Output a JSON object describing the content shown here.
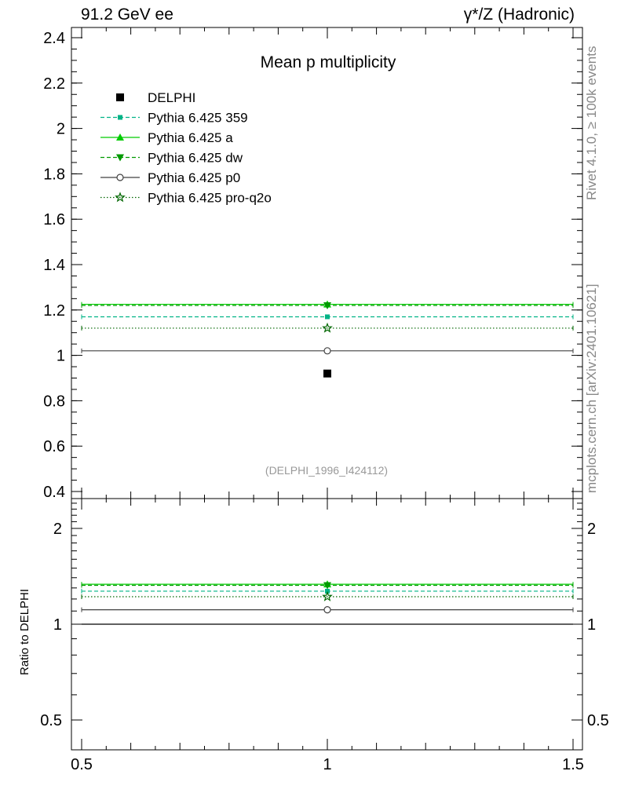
{
  "header": {
    "left": "91.2 GeV ee",
    "right": "γ*/Z (Hadronic)"
  },
  "side_text": {
    "rivet": "Rivet 4.1.0, ≥ 100k events",
    "mcplots": "mcplots.cern.ch [arXiv:2401.10621]"
  },
  "ratio_ylabel": "Ratio to DELPHI",
  "chart_data": [
    {
      "panel": "main",
      "type": "scatter",
      "title": "Mean p multiplicity",
      "watermark": "(DELPHI_1996_I424112)",
      "xlim": [
        0.5,
        1.5
      ],
      "ylim": [
        0.4,
        2.4
      ],
      "yticks": [
        0.4,
        0.6,
        0.8,
        1,
        1.2,
        1.4,
        1.6,
        1.8,
        2,
        2.2,
        2.4
      ],
      "ytick_labels": [
        "0.4",
        "0.6",
        "0.8",
        "1",
        "1.2",
        "1.4",
        "1.6",
        "1.8",
        "2",
        "2.2",
        "2.4"
      ],
      "legend_position": "top-left",
      "series": [
        {
          "name": "DELPHI",
          "x": 1,
          "y": 0.92,
          "color": "#000000",
          "marker": "square",
          "line": "none"
        },
        {
          "name": "Pythia 6.425 359",
          "x": 1,
          "y": 1.17,
          "color": "#00b386",
          "marker": "small-square",
          "line": "dashed"
        },
        {
          "name": "Pythia 6.425 a",
          "x": 1,
          "y": 1.225,
          "color": "#00cc00",
          "marker": "triangle-up",
          "line": "solid"
        },
        {
          "name": "Pythia 6.425 dw",
          "x": 1,
          "y": 1.22,
          "color": "#009900",
          "marker": "triangle-down",
          "line": "dashed"
        },
        {
          "name": "Pythia 6.425 p0",
          "x": 1,
          "y": 1.02,
          "color": "#404040",
          "marker": "open-circle",
          "line": "solid"
        },
        {
          "name": "Pythia 6.425 pro-q2o",
          "x": 1,
          "y": 1.12,
          "color": "#006600",
          "marker": "open-star",
          "line": "dotted"
        }
      ]
    },
    {
      "panel": "ratio",
      "type": "scatter",
      "ylabel": "Ratio to DELPHI",
      "xlim": [
        0.5,
        1.5
      ],
      "xticks": [
        0.5,
        1,
        1.5
      ],
      "xtick_labels": [
        "0.5",
        "1",
        "1.5"
      ],
      "ylim": [
        0.4,
        2.45
      ],
      "yscale": "log",
      "yticks": [
        0.5,
        1,
        2
      ],
      "ytick_labels": [
        "0.5",
        "1",
        "2"
      ],
      "series": [
        {
          "name": "DELPHI",
          "y": 1.0,
          "color": "#000000",
          "line": "solid",
          "marker": "none"
        },
        {
          "name": "Pythia 6.425 359",
          "y": 1.27,
          "color": "#00b386",
          "line": "dashed",
          "marker": "small-square"
        },
        {
          "name": "Pythia 6.425 a",
          "y": 1.335,
          "color": "#00cc00",
          "line": "solid",
          "marker": "triangle-up"
        },
        {
          "name": "Pythia 6.425 dw",
          "y": 1.325,
          "color": "#009900",
          "line": "dashed",
          "marker": "triangle-down"
        },
        {
          "name": "Pythia 6.425 p0",
          "y": 1.11,
          "color": "#404040",
          "line": "solid",
          "marker": "open-circle"
        },
        {
          "name": "Pythia 6.425 pro-q2o",
          "y": 1.22,
          "color": "#006600",
          "line": "dotted",
          "marker": "open-star"
        }
      ]
    }
  ]
}
